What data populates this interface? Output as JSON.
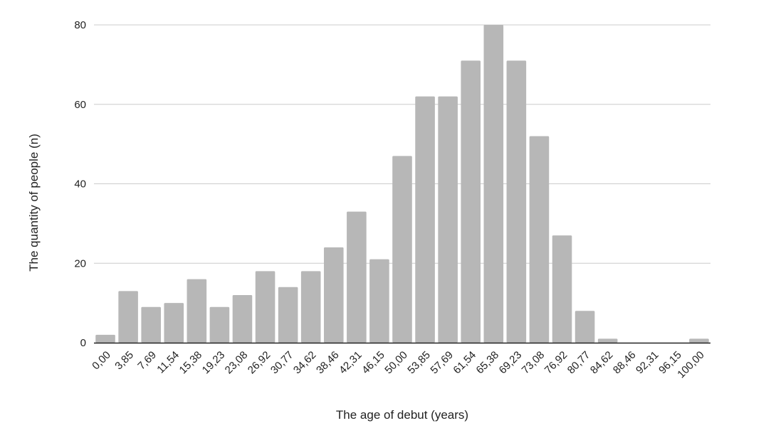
{
  "chart_data": {
    "type": "bar",
    "title": "",
    "xlabel": "The age of debut (years)",
    "ylabel": "The quantity of people (n)",
    "categories": [
      "0,00",
      "3,85",
      "7,69",
      "11,54",
      "15,38",
      "19,23",
      "23,08",
      "26,92",
      "30,77",
      "34,62",
      "38,46",
      "42,31",
      "46,15",
      "50,00",
      "53,85",
      "57,69",
      "61,54",
      "65,38",
      "69,23",
      "73,08",
      "76,92",
      "80,77",
      "84,62",
      "88,46",
      "92,31",
      "96,15",
      "100,00"
    ],
    "values": [
      2,
      13,
      9,
      10,
      16,
      9,
      12,
      18,
      14,
      18,
      24,
      33,
      21,
      47,
      62,
      62,
      71,
      80,
      71,
      52,
      27,
      8,
      1,
      0,
      0,
      0,
      1
    ],
    "ylim": [
      0,
      80
    ],
    "yticks": [
      0,
      20,
      40,
      60,
      80
    ],
    "grid": true,
    "legend": "none",
    "colors": {
      "bar": "#b7b7b7",
      "grid": "#cccccc",
      "axis": "#222222",
      "text": "#222222"
    }
  }
}
